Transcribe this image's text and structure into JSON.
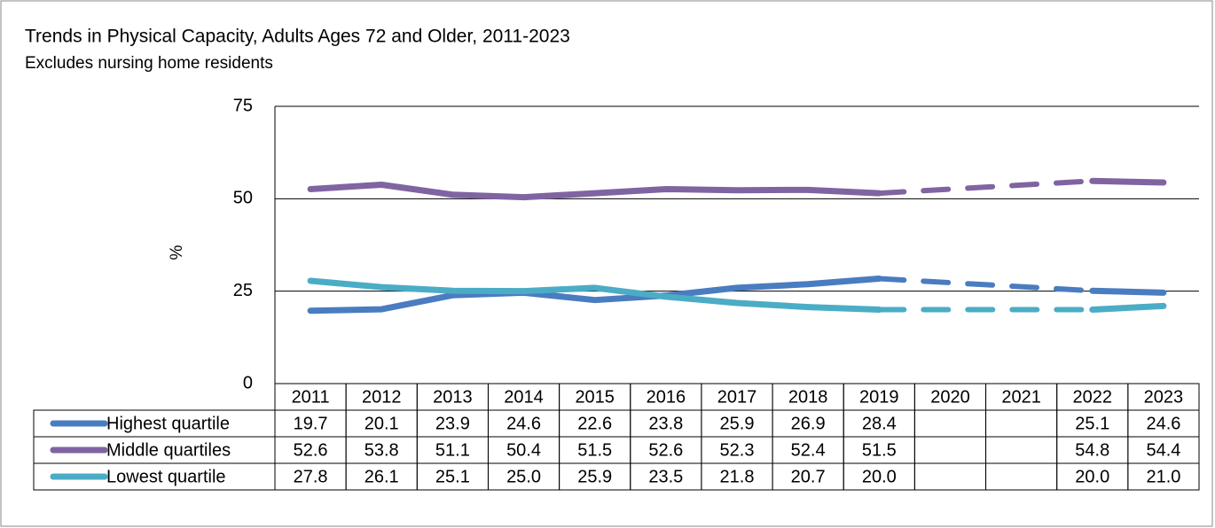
{
  "chart_data": {
    "type": "line",
    "title": "Trends in Physical Capacity, Adults Ages 72 and Older, 2011-2023",
    "subtitle": "Excludes nursing home residents",
    "y_label": "%",
    "categories": [
      "2011",
      "2012",
      "2013",
      "2014",
      "2015",
      "2016",
      "2017",
      "2018",
      "2019",
      "2020",
      "2021",
      "2022",
      "2023"
    ],
    "ylim": [
      0,
      75
    ],
    "yticks": [
      0,
      25,
      50,
      75
    ],
    "grid": true,
    "series": [
      {
        "name": "Highest quartile",
        "color": "#4a7cc0",
        "values": [
          19.7,
          20.1,
          23.9,
          24.6,
          22.6,
          23.8,
          25.9,
          26.9,
          28.4,
          null,
          null,
          25.1,
          24.6
        ],
        "value_labels": [
          "19.7",
          "20.1",
          "23.9",
          "24.6",
          "22.6",
          "23.8",
          "25.9",
          "26.9",
          "28.4",
          null,
          null,
          "25.1",
          "24.6"
        ]
      },
      {
        "name": "Middle quartiles",
        "color": "#8064a2",
        "values": [
          52.6,
          53.8,
          51.1,
          50.4,
          51.5,
          52.6,
          52.3,
          52.4,
          51.5,
          null,
          null,
          54.8,
          54.4
        ],
        "value_labels": [
          "52.6",
          "53.8",
          "51.1",
          "50.4",
          "51.5",
          "52.6",
          "52.3",
          "52.4",
          "51.5",
          null,
          null,
          "54.8",
          "54.4"
        ]
      },
      {
        "name": "Lowest quartile",
        "color": "#4bacc6",
        "values": [
          27.8,
          26.1,
          25.1,
          25.0,
          25.9,
          23.5,
          21.8,
          20.7,
          20.0,
          null,
          null,
          20.0,
          21.0
        ],
        "value_labels": [
          "27.8",
          "26.1",
          "25.1",
          "25.0",
          "25.9",
          "23.5",
          "21.8",
          "20.7",
          "20.0",
          null,
          null,
          "20.0",
          "21.0"
        ]
      }
    ]
  }
}
